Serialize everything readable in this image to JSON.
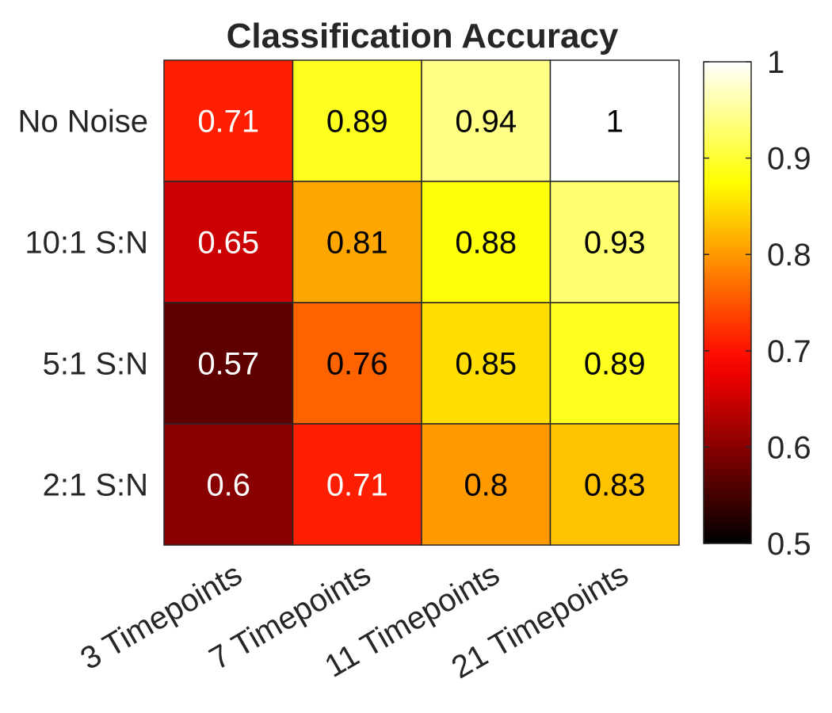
{
  "chart_data": {
    "type": "heatmap",
    "title": "Classification Accuracy",
    "x_categories": [
      "3 Timepoints",
      "7 Timepoints",
      "11 Timepoints",
      "21 Timepoints"
    ],
    "y_categories": [
      "No Noise",
      "10:1 S:N",
      "5:1 S:N",
      "2:1 S:N"
    ],
    "values": [
      [
        0.71,
        0.89,
        0.94,
        1
      ],
      [
        0.65,
        0.81,
        0.88,
        0.93
      ],
      [
        0.57,
        0.76,
        0.85,
        0.89
      ],
      [
        0.6,
        0.71,
        0.8,
        0.83
      ]
    ],
    "cell_labels": [
      [
        "0.71",
        "0.89",
        "0.94",
        "1"
      ],
      [
        "0.65",
        "0.81",
        "0.88",
        "0.93"
      ],
      [
        "0.57",
        "0.76",
        "0.85",
        "0.89"
      ],
      [
        "0.6",
        "0.71",
        "0.8",
        "0.83"
      ]
    ],
    "colormap": "hot",
    "colorbar": {
      "range": [
        0.5,
        1
      ],
      "ticks": [
        0.5,
        0.6,
        0.7,
        0.8,
        0.9,
        1
      ],
      "tick_labels": [
        "0.5",
        "0.6",
        "0.7",
        "0.8",
        "0.9",
        "1"
      ]
    }
  }
}
